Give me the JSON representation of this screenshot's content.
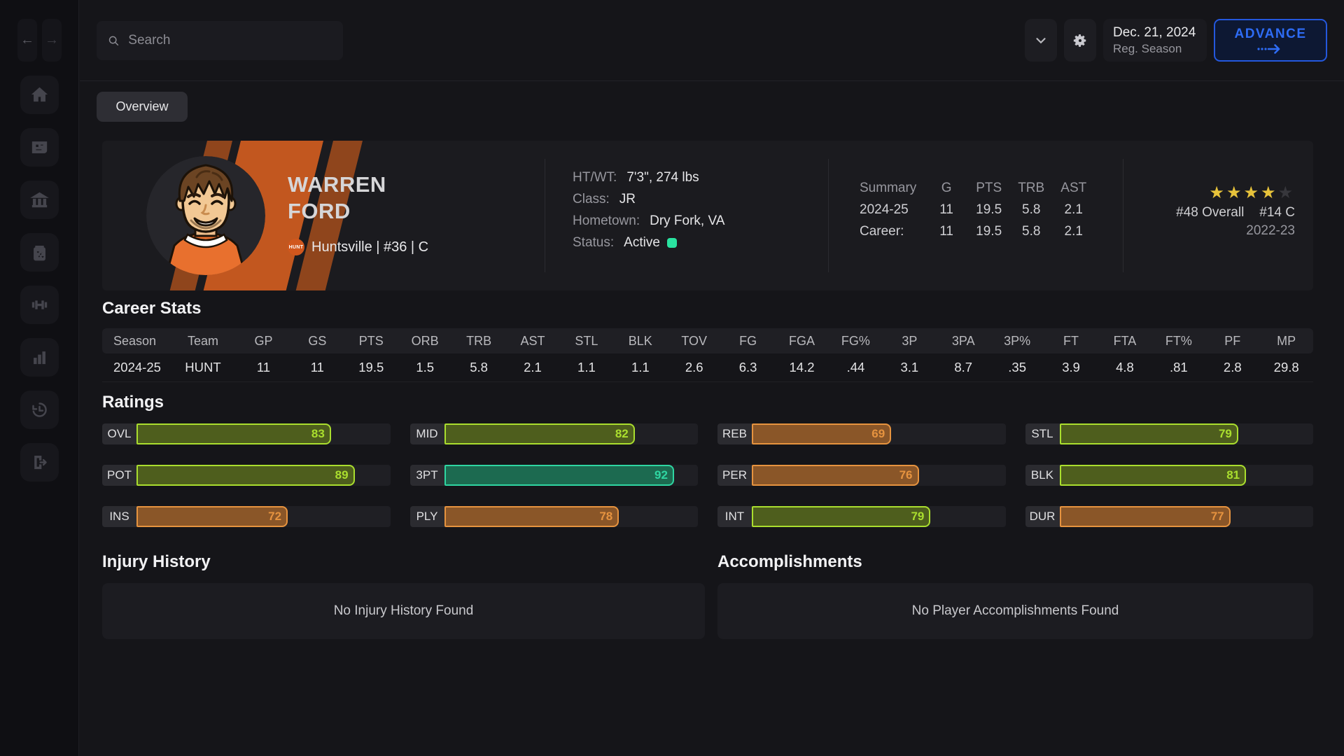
{
  "topbar": {
    "search_placeholder": "Search",
    "date": "Dec. 21, 2024",
    "phase": "Reg. Season",
    "advance_label": "ADVANCE"
  },
  "tabs": {
    "overview": "Overview"
  },
  "sidebar": {
    "items": [
      "home",
      "news",
      "school",
      "playbook",
      "training",
      "stats",
      "history",
      "exit"
    ]
  },
  "player": {
    "first_name": "WARREN",
    "last_name": "FORD",
    "team_abbr": "HUNT",
    "team_line": "Huntsville | #36 | C",
    "bio": [
      {
        "label": "HT/WT:",
        "value": "7'3\", 274 lbs"
      },
      {
        "label": "Class:",
        "value": "JR"
      },
      {
        "label": "Hometown:",
        "value": "Dry Fork, VA"
      },
      {
        "label": "Status:",
        "value": "Active",
        "dot": true
      }
    ],
    "summary": {
      "headers": [
        "Summary",
        "G",
        "PTS",
        "TRB",
        "AST"
      ],
      "rows": [
        [
          "2024-25",
          "11",
          "19.5",
          "5.8",
          "2.1"
        ],
        [
          "Career:",
          "11",
          "19.5",
          "5.8",
          "2.1"
        ]
      ]
    },
    "recruit": {
      "stars_filled": 4,
      "stars_total": 5,
      "overall_rank": "#48 Overall",
      "position_rank": "#14 C",
      "class_year": "2022-23"
    }
  },
  "career_stats": {
    "title": "Career Stats",
    "headers": [
      "Season",
      "Team",
      "GP",
      "GS",
      "PTS",
      "ORB",
      "TRB",
      "AST",
      "STL",
      "BLK",
      "TOV",
      "FG",
      "FGA",
      "FG%",
      "3P",
      "3PA",
      "3P%",
      "FT",
      "FTA",
      "FT%",
      "PF",
      "MP"
    ],
    "rows": [
      [
        "2024-25",
        "HUNT",
        "11",
        "11",
        "19.5",
        "1.5",
        "5.8",
        "2.1",
        "1.1",
        "1.1",
        "2.6",
        "6.3",
        "14.2",
        ".44",
        "3.1",
        "8.7",
        ".35",
        "3.9",
        "4.8",
        ".81",
        "2.8",
        "29.8"
      ]
    ]
  },
  "ratings": {
    "title": "Ratings",
    "items": [
      {
        "label": "OVL",
        "value": 83,
        "tone": "green"
      },
      {
        "label": "MID",
        "value": 82,
        "tone": "green"
      },
      {
        "label": "REB",
        "value": 69,
        "tone": "orange"
      },
      {
        "label": "STL",
        "value": 79,
        "tone": "green"
      },
      {
        "label": "POT",
        "value": 89,
        "tone": "green"
      },
      {
        "label": "3PT",
        "value": 92,
        "tone": "teal"
      },
      {
        "label": "PER",
        "value": 76,
        "tone": "orange"
      },
      {
        "label": "BLK",
        "value": 81,
        "tone": "green"
      },
      {
        "label": "INS",
        "value": 72,
        "tone": "orange"
      },
      {
        "label": "PLY",
        "value": 78,
        "tone": "orange"
      },
      {
        "label": "INT",
        "value": 79,
        "tone": "green"
      },
      {
        "label": "DUR",
        "value": 77,
        "tone": "orange"
      }
    ]
  },
  "injury_history": {
    "title": "Injury History",
    "empty_text": "No Injury History Found"
  },
  "accomplishments": {
    "title": "Accomplishments",
    "empty_text": "No Player Accomplishments Found"
  },
  "colors": {
    "accent_blue": "#2e6cf5",
    "advance_bg": "#0d1833",
    "team_orange": "#c2571f",
    "team_rust": "#8f451c",
    "star_gold": "#e7c33b",
    "star_empty": "#37373c",
    "status_green": "#2ae3a0",
    "tones": {
      "green": {
        "fill": "#4e5e1d",
        "edge": "#aade2e"
      },
      "teal": {
        "fill": "#1c6a50",
        "edge": "#2fd6a2"
      },
      "orange": {
        "fill": "#8a5628",
        "edge": "#e6933f"
      }
    }
  }
}
